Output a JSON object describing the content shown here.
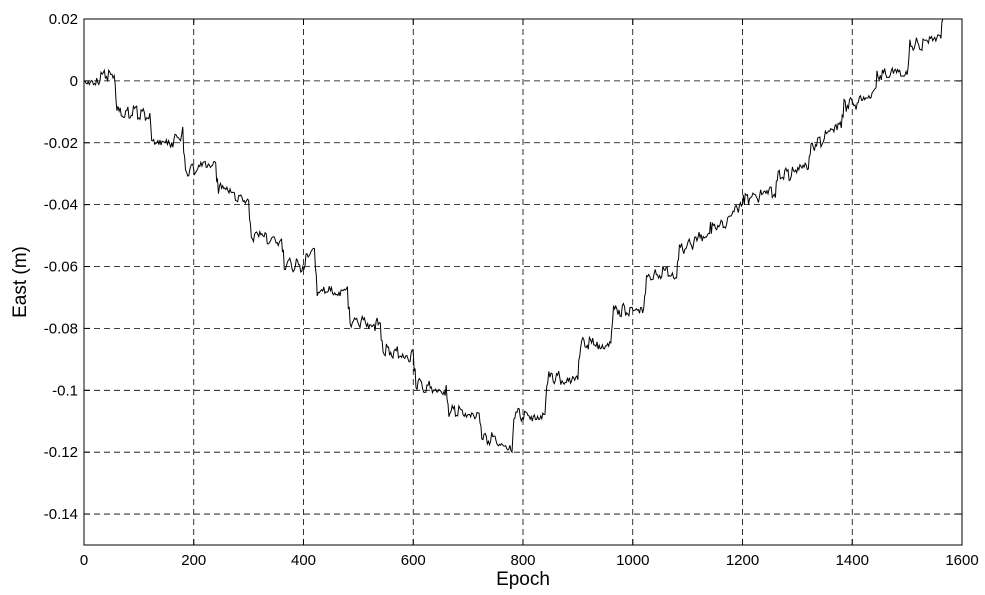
{
  "chart_data": {
    "type": "line",
    "title": "",
    "xlabel": "Epoch",
    "ylabel": "East (m)",
    "xlim": [
      0,
      1600
    ],
    "ylim": [
      -0.15,
      0.02
    ],
    "xticks": [
      0,
      200,
      400,
      600,
      800,
      1000,
      1200,
      1400,
      1600
    ],
    "yticks": [
      0.02,
      0,
      -0.02,
      -0.04,
      -0.06,
      -0.08,
      -0.1,
      -0.12,
      -0.14
    ],
    "xtick_labels": [
      "0",
      "200",
      "400",
      "600",
      "800",
      "1000",
      "1200",
      "1400",
      "1600"
    ],
    "ytick_labels": [
      "0.02",
      "0",
      "-0.02",
      "-0.04",
      "-0.06",
      "-0.08",
      "-0.1",
      "-0.12",
      "-0.14"
    ],
    "grid": true,
    "line_color": "#000000",
    "series": [
      {
        "x": [
          0,
          25,
          55,
          60,
          90,
          120,
          125,
          150,
          180,
          185,
          215,
          240,
          245,
          270,
          300,
          305,
          330,
          360,
          365,
          395,
          420,
          425,
          455,
          480,
          485,
          515,
          540,
          545,
          575,
          600,
          605,
          635,
          660,
          665,
          695,
          720,
          725,
          755,
          780,
          785,
          815,
          840,
          845,
          875,
          900,
          905,
          935,
          960,
          965,
          995,
          1020,
          1025,
          1055,
          1080,
          1085,
          1115,
          1140,
          1145,
          1175,
          1200,
          1205,
          1235,
          1260,
          1265,
          1295,
          1320,
          1325,
          1355,
          1380,
          1385,
          1415,
          1440,
          1445,
          1475,
          1500,
          1505,
          1535,
          1560,
          1565
        ],
        "y": [
          0.0,
          0.001,
          0.002,
          -0.01,
          -0.01,
          -0.011,
          -0.021,
          -0.021,
          -0.017,
          -0.029,
          -0.028,
          -0.028,
          -0.035,
          -0.037,
          -0.039,
          -0.05,
          -0.051,
          -0.052,
          -0.059,
          -0.06,
          -0.055,
          -0.068,
          -0.068,
          -0.068,
          -0.078,
          -0.078,
          -0.079,
          -0.087,
          -0.088,
          -0.089,
          -0.098,
          -0.099,
          -0.1,
          -0.107,
          -0.107,
          -0.107,
          -0.115,
          -0.116,
          -0.118,
          -0.108,
          -0.108,
          -0.107,
          -0.096,
          -0.096,
          -0.095,
          -0.085,
          -0.085,
          -0.084,
          -0.074,
          -0.074,
          -0.073,
          -0.064,
          -0.062,
          -0.062,
          -0.055,
          -0.052,
          -0.048,
          -0.047,
          -0.046,
          -0.038,
          -0.038,
          -0.037,
          -0.036,
          -0.03,
          -0.03,
          -0.028,
          -0.021,
          -0.018,
          -0.015,
          -0.008,
          -0.007,
          -0.005,
          0.002,
          0.002,
          0.001,
          0.012,
          0.012,
          0.013,
          0.02
        ]
      }
    ]
  }
}
